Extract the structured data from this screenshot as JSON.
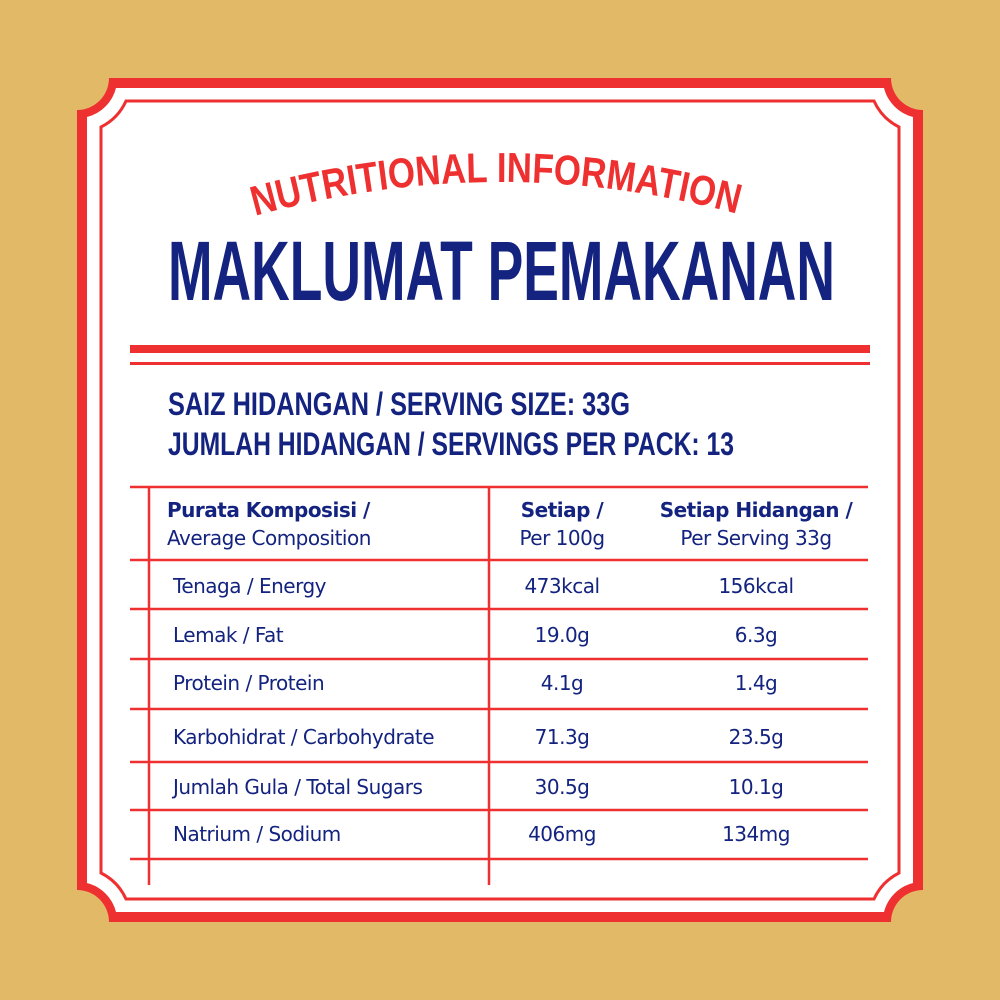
{
  "colors": {
    "background": "#e2b966",
    "red": "#ee3130",
    "navy": "#13237f",
    "panel": "#ffffff"
  },
  "header": {
    "arc_title": "NUTRITIONAL INFORMATION",
    "title": "MAKLUMAT PEMAKANAN"
  },
  "serving": {
    "size_line": "SAIZ HIDANGAN / SERVING SIZE: 33G",
    "per_pack_line": "JUMLAH HIDANGAN / SERVINGS PER PACK: 13"
  },
  "table": {
    "headers": [
      {
        "line1": "Purata Komposisi /",
        "line2": "Average Composition"
      },
      {
        "line1": "Setiap /",
        "line2": "Per 100g"
      },
      {
        "line1": "Setiap Hidangan /",
        "line2": "Per Serving 33g"
      }
    ],
    "rows": [
      {
        "label": "Tenaga / Energy",
        "per100": "473kcal",
        "perServing": "156kcal"
      },
      {
        "label": "Lemak / Fat",
        "per100": "19.0g",
        "perServing": "6.3g"
      },
      {
        "label": "Protein / Protein",
        "per100": "4.1g",
        "perServing": "1.4g"
      },
      {
        "label": "Karbohidrat / Carbohydrate",
        "per100": "71.3g",
        "perServing": "23.5g"
      },
      {
        "label": "Jumlah Gula / Total Sugars",
        "per100": "30.5g",
        "perServing": "10.1g"
      },
      {
        "label": "Natrium / Sodium",
        "per100": "406mg",
        "perServing": "134mg"
      }
    ]
  }
}
